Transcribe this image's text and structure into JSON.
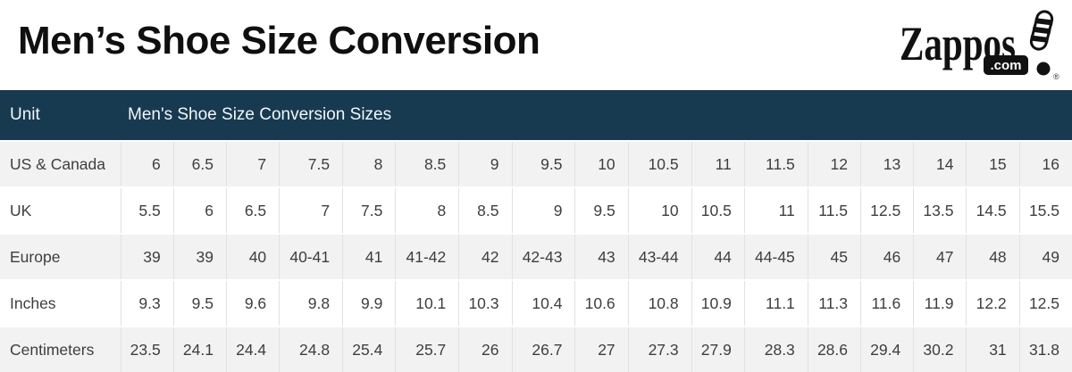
{
  "page": {
    "title": "Men’s Shoe Size Conversion"
  },
  "logo": {
    "brand": "Zappos",
    "domain": ".com",
    "registered": "®"
  },
  "chart_data": {
    "type": "table",
    "title": "Men’s Shoe Size Conversion",
    "columns": [
      "Unit",
      "Men's Shoe Size Conversion Sizes"
    ],
    "rows": [
      {
        "label": "US & Canada",
        "values": [
          "6",
          "6.5",
          "7",
          "7.5",
          "8",
          "8.5",
          "9",
          "9.5",
          "10",
          "10.5",
          "11",
          "11.5",
          "12",
          "13",
          "14",
          "15",
          "16"
        ]
      },
      {
        "label": "UK",
        "values": [
          "5.5",
          "6",
          "6.5",
          "7",
          "7.5",
          "8",
          "8.5",
          "9",
          "9.5",
          "10",
          "10.5",
          "11",
          "11.5",
          "12.5",
          "13.5",
          "14.5",
          "15.5"
        ]
      },
      {
        "label": "Europe",
        "values": [
          "39",
          "39",
          "40",
          "40-41",
          "41",
          "41-42",
          "42",
          "42-43",
          "43",
          "43-44",
          "44",
          "44-45",
          "45",
          "46",
          "47",
          "48",
          "49"
        ]
      },
      {
        "label": "Inches",
        "values": [
          "9.3",
          "9.5",
          "9.6",
          "9.8",
          "9.9",
          "10.1",
          "10.3",
          "10.4",
          "10.6",
          "10.8",
          "10.9",
          "11.1",
          "11.3",
          "11.6",
          "11.9",
          "12.2",
          "12.5"
        ]
      },
      {
        "label": "Centimeters",
        "values": [
          "23.5",
          "24.1",
          "24.4",
          "24.8",
          "25.4",
          "25.7",
          "26",
          "26.7",
          "27",
          "27.3",
          "27.9",
          "28.3",
          "28.6",
          "29.4",
          "30.2",
          "31",
          "31.8"
        ]
      }
    ]
  },
  "colors": {
    "header_bg": "#173a50",
    "header_text": "#f2f6f9",
    "stripe_bg": "#f2f2f2",
    "row_bg": "#ffffff",
    "cell_border": "#e1e1e1",
    "body_text": "#3e3e3e",
    "title_text": "#0f0f0f"
  }
}
